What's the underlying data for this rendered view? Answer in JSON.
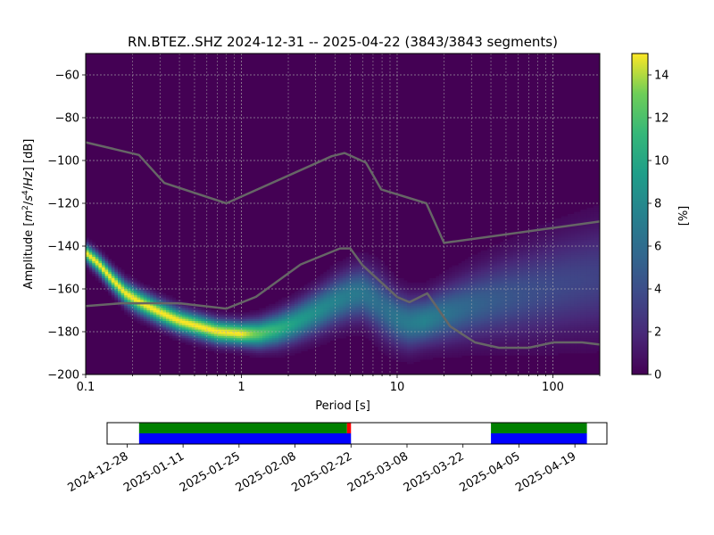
{
  "chart_data": [
    {
      "type": "heatmap",
      "title": "RN.BTEZ..SHZ   2024-12-31 -- 2025-04-22  (3843/3843 segments)",
      "xlabel": "Period [s]",
      "ylabel_parts": {
        "main": "Amplitude [",
        "m": "m",
        "sup2": "2",
        "slash": "/",
        "s": "s",
        "sup4": "4",
        "rest": "/",
        "hz": "Hz",
        "end": "] [dB]"
      },
      "x_scale": "log",
      "xlim": [
        0.1,
        200
      ],
      "ylim": [
        -200,
        -50
      ],
      "x_ticks": [
        {
          "v": 0.1,
          "label": "0.1"
        },
        {
          "v": 1,
          "label": "1"
        },
        {
          "v": 10,
          "label": "10"
        },
        {
          "v": 100,
          "label": "100"
        }
      ],
      "y_ticks": [
        {
          "v": -60,
          "label": "−60"
        },
        {
          "v": -80,
          "label": "−80"
        },
        {
          "v": -100,
          "label": "−100"
        },
        {
          "v": -120,
          "label": "−120"
        },
        {
          "v": -140,
          "label": "−140"
        },
        {
          "v": -160,
          "label": "−160"
        },
        {
          "v": -180,
          "label": "−180"
        },
        {
          "v": -200,
          "label": "−200"
        }
      ],
      "grid": true,
      "colormap": "viridis",
      "background_color": "#440154",
      "mode_curve": [
        [
          0.1,
          -143
        ],
        [
          0.12,
          -148
        ],
        [
          0.15,
          -156
        ],
        [
          0.18,
          -162
        ],
        [
          0.22,
          -166
        ],
        [
          0.3,
          -171
        ],
        [
          0.4,
          -175
        ],
        [
          0.5,
          -177
        ],
        [
          0.7,
          -180
        ],
        [
          1.0,
          -181
        ],
        [
          1.3,
          -181
        ],
        [
          1.7,
          -179
        ],
        [
          2.2,
          -176
        ],
        [
          3.0,
          -171
        ],
        [
          4.0,
          -166
        ],
        [
          5.0,
          -163
        ],
        [
          6.0,
          -162
        ],
        [
          7.0,
          -165
        ],
        [
          8.5,
          -170
        ],
        [
          10.0,
          -174
        ],
        [
          12.0,
          -176
        ],
        [
          15.0,
          -175
        ],
        [
          20.0,
          -172
        ],
        [
          30.0,
          -168
        ],
        [
          50.0,
          -164
        ],
        [
          80.0,
          -161
        ],
        [
          120.0,
          -158
        ],
        [
          200.0,
          -155
        ]
      ],
      "spread_curve": [
        [
          0.1,
          3
        ],
        [
          0.2,
          4
        ],
        [
          0.5,
          4
        ],
        [
          1.0,
          4
        ],
        [
          2.0,
          6
        ],
        [
          4.0,
          8
        ],
        [
          6.0,
          9
        ],
        [
          8.0,
          10
        ],
        [
          10.0,
          9
        ],
        [
          15.0,
          8
        ],
        [
          30.0,
          11
        ],
        [
          60.0,
          14
        ],
        [
          100.0,
          16
        ],
        [
          200.0,
          18
        ]
      ],
      "noise_models": [
        {
          "name": "NHNM",
          "points": [
            [
              0.1,
              -91.5
            ],
            [
              0.22,
              -97.4
            ],
            [
              0.32,
              -110.5
            ],
            [
              0.8,
              -120
            ],
            [
              3.8,
              -98
            ],
            [
              4.6,
              -96.5
            ],
            [
              6.3,
              -101
            ],
            [
              7.9,
              -113.5
            ],
            [
              15.4,
              -120
            ],
            [
              20,
              -138.5
            ],
            [
              200,
              -128.5
            ]
          ]
        },
        {
          "name": "NLNM",
          "points": [
            [
              0.1,
              -168
            ],
            [
              0.17,
              -166.7
            ],
            [
              0.4,
              -166.7
            ],
            [
              0.8,
              -169.2
            ],
            [
              1.24,
              -163.7
            ],
            [
              2.4,
              -148.6
            ],
            [
              4.3,
              -141.1
            ],
            [
              5.0,
              -141.1
            ],
            [
              6.0,
              -149
            ],
            [
              10,
              -163.8
            ],
            [
              12,
              -166.2
            ],
            [
              15.6,
              -162.1
            ],
            [
              21.9,
              -177.5
            ],
            [
              31.6,
              -185
            ],
            [
              45,
              -187.5
            ],
            [
              70,
              -187.5
            ],
            [
              101,
              -185
            ],
            [
              154,
              -185
            ],
            [
              200,
              -186
            ]
          ]
        }
      ],
      "noise_model_color": "#666666"
    },
    {
      "type": "colorbar",
      "label": "[%]",
      "range": [
        0,
        15
      ],
      "ticks": [
        {
          "v": 0,
          "label": "0"
        },
        {
          "v": 2,
          "label": "2"
        },
        {
          "v": 4,
          "label": "4"
        },
        {
          "v": 6,
          "label": "6"
        },
        {
          "v": 8,
          "label": "8"
        },
        {
          "v": 10,
          "label": "10"
        },
        {
          "v": 12,
          "label": "12"
        },
        {
          "v": 14,
          "label": "14"
        }
      ]
    },
    {
      "type": "timeline",
      "range": [
        "2024-12-23",
        "2025-04-27"
      ],
      "tick_labels": [
        {
          "date": "2024-12-28",
          "label": "2024-12-28"
        },
        {
          "date": "2025-01-11",
          "label": "2025-01-11"
        },
        {
          "date": "2025-01-25",
          "label": "2025-01-25"
        },
        {
          "date": "2025-02-08",
          "label": "2025-02-08"
        },
        {
          "date": "2025-02-22",
          "label": "2025-02-22"
        },
        {
          "date": "2025-03-08",
          "label": "2025-03-08"
        },
        {
          "date": "2025-03-22",
          "label": "2025-03-22"
        },
        {
          "date": "2025-04-05",
          "label": "2025-04-05"
        },
        {
          "date": "2025-04-19",
          "label": "2025-04-19"
        }
      ],
      "coverage": [
        {
          "start": "2024-12-31",
          "end": "2025-02-22",
          "color": "#0000ff"
        },
        {
          "start": "2025-03-29",
          "end": "2025-04-22",
          "color": "#0000ff"
        }
      ],
      "used": [
        {
          "start": "2024-12-31",
          "end": "2025-02-21",
          "color": "#008000"
        },
        {
          "start": "2025-02-21",
          "end": "2025-02-22",
          "color": "#ff0000"
        },
        {
          "start": "2025-03-29",
          "end": "2025-04-22",
          "color": "#008000"
        }
      ]
    }
  ]
}
